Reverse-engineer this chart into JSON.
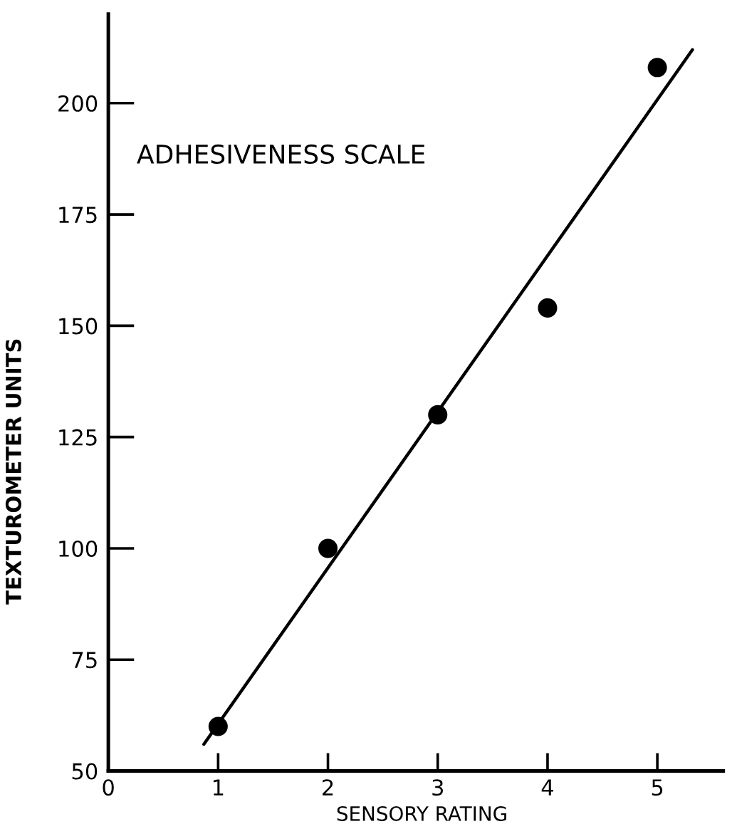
{
  "chart_data": {
    "type": "scatter",
    "xlabel": "SENSORY RATING",
    "ylabel": "TEXTUROMETER UNITS",
    "annotations": [
      "ADHESIVENESS SCALE"
    ],
    "x": [
      1,
      2,
      3,
      4,
      5
    ],
    "marker": "circle",
    "series": [
      {
        "color": "#000000",
        "values": [
          60,
          100,
          130,
          154,
          208
        ]
      },
      {
        "type": "line",
        "x": [
          0.87,
          5.32
        ],
        "values": [
          56,
          212
        ],
        "color": "#000000",
        "marker": "none",
        "line_style": "solid"
      }
    ],
    "xlim": [
      0,
      5.6
    ],
    "ylim": [
      50,
      220
    ],
    "xticks": [
      0,
      1,
      2,
      3,
      4,
      5
    ],
    "yticks": [
      50,
      75,
      100,
      125,
      150,
      175,
      200
    ]
  }
}
